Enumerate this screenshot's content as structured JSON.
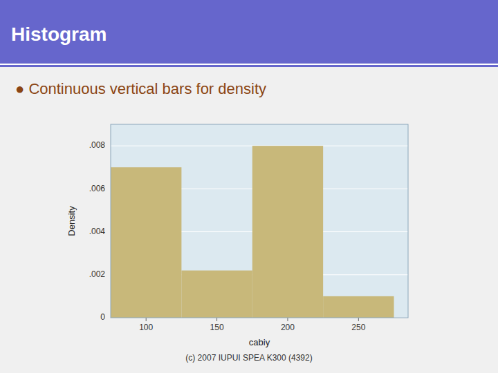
{
  "chart_data": {
    "type": "histogram",
    "title": "Histogram",
    "subtitle": "● Continuous vertical bars for density",
    "annotations": [
      "(c) 2007 IUPUI SPEA K300 (4392)"
    ],
    "bins": [
      75,
      125,
      175,
      225,
      275
    ],
    "values": [
      0.007,
      0.0022,
      0.008,
      0.001
    ],
    "color": "#c8b87a",
    "xlabel": "cabiy",
    "ylabel": "Density",
    "xlim": [
      75,
      285
    ],
    "xticks": [
      100,
      150,
      200,
      250
    ],
    "ylim": [
      0,
      0.009
    ],
    "yticks": [
      0,
      {
        "value": 0.002,
        "label": ".002"
      },
      {
        "value": 0.004,
        "label": ".004"
      },
      {
        "value": 0.006,
        "label": ".006"
      },
      {
        "value": 0.008,
        "label": ".008"
      }
    ],
    "grid": true
  }
}
